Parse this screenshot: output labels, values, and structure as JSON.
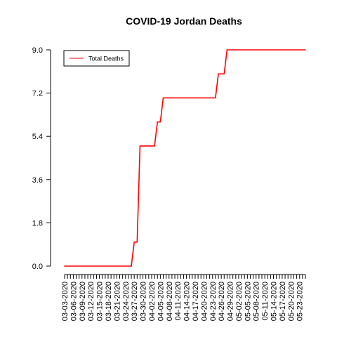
{
  "chart_data": {
    "type": "line",
    "title": "COVID-19 Jordan Deaths",
    "xlabel": "",
    "ylabel": "",
    "ylim": [
      0,
      9
    ],
    "yticks": [
      "0.0",
      "1.8",
      "3.6",
      "5.4",
      "7.2",
      "9.0"
    ],
    "start_date": "03-03-2020",
    "end_date": "05-25-2020",
    "day_count": 84,
    "x_label_every_days": 3,
    "x_tick_labels": [
      "03-03-2020",
      "03-06-2020",
      "03-09-2020",
      "03-12-2020",
      "03-15-2020",
      "03-18-2020",
      "03-21-2020",
      "03-24-2020",
      "03-27-2020",
      "03-30-2020",
      "04-02-2020",
      "04-05-2020",
      "04-08-2020",
      "04-11-2020",
      "04-14-2020",
      "04-17-2020",
      "04-20-2020",
      "04-23-2020",
      "04-26-2020",
      "04-29-2020",
      "05-02-2020",
      "05-05-2020",
      "05-08-2020",
      "05-11-2020",
      "05-14-2020",
      "05-17-2020",
      "05-20-2020",
      "05-23-2020"
    ],
    "series": [
      {
        "name": "Total Deaths",
        "color": "#ff0000",
        "values": [
          0,
          0,
          0,
          0,
          0,
          0,
          0,
          0,
          0,
          0,
          0,
          0,
          0,
          0,
          0,
          0,
          0,
          0,
          0,
          0,
          0,
          0,
          0,
          0,
          1,
          1,
          5,
          5,
          5,
          5,
          5,
          5,
          6,
          6,
          7,
          7,
          7,
          7,
          7,
          7,
          7,
          7,
          7,
          7,
          7,
          7,
          7,
          7,
          7,
          7,
          7,
          7,
          7,
          8,
          8,
          8,
          9,
          9,
          9,
          9,
          9,
          9,
          9,
          9,
          9,
          9,
          9,
          9,
          9,
          9,
          9,
          9,
          9,
          9,
          9,
          9,
          9,
          9,
          9,
          9,
          9,
          9,
          9,
          9
        ]
      }
    ],
    "legend": {
      "position": "top-left",
      "entries": [
        "Total Deaths"
      ]
    }
  }
}
